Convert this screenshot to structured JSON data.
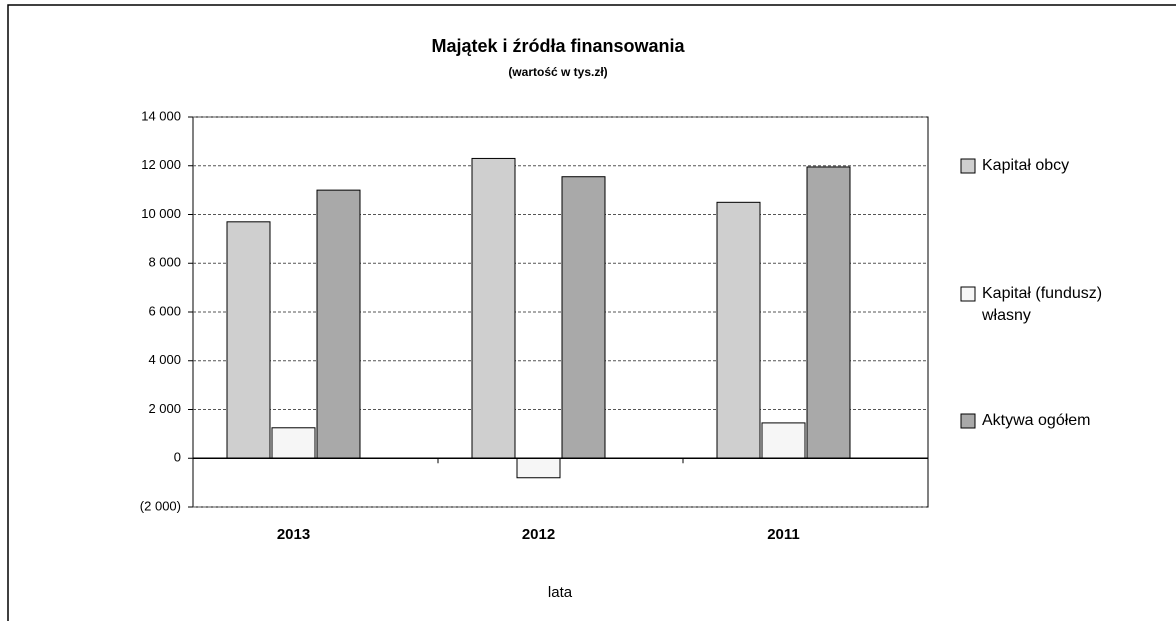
{
  "chart_data": {
    "type": "bar",
    "title": "Majątek i źródła finansowania",
    "subtitle": "(wartość w tys.zł)",
    "x_label": "lata",
    "categories": [
      "2013",
      "2012",
      "2011"
    ],
    "series": [
      {
        "name": "Kapitał obcy",
        "color": "#cfcfcf",
        "values": [
          9700,
          12300,
          10500
        ]
      },
      {
        "name": "Kapitał (fundusz) własny",
        "color": "#f6f6f6",
        "values": [
          1250,
          -800,
          1450
        ]
      },
      {
        "name": "Aktywa ogółem",
        "color": "#a9a9a9",
        "values": [
          11000,
          11550,
          11950
        ]
      }
    ],
    "ylim": [
      -2000,
      14000
    ],
    "yticks": [
      {
        "value": -2000,
        "label": "(2 000)"
      },
      0,
      {
        "value": 2000,
        "label": "2 000"
      },
      {
        "value": 4000,
        "label": "4 000"
      },
      {
        "value": 6000,
        "label": "6 000"
      },
      {
        "value": 8000,
        "label": "8 000"
      },
      {
        "value": 10000,
        "label": "10 000"
      },
      {
        "value": 12000,
        "label": "12 000"
      },
      {
        "value": 14000,
        "label": "14 000"
      }
    ],
    "grid": true,
    "legend": "right"
  }
}
